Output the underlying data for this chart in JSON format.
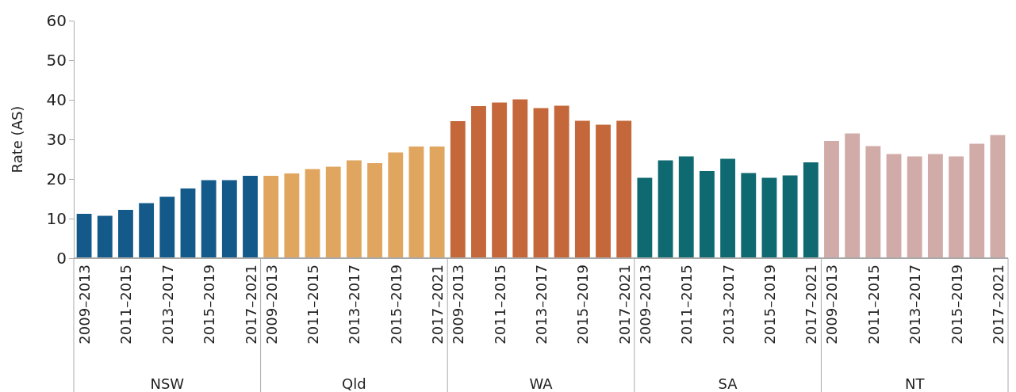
{
  "chart_data": {
    "type": "bar",
    "ylabel": "Rate (AS)",
    "ylim": [
      0,
      60
    ],
    "yticks": [
      0,
      10,
      20,
      30,
      40,
      50,
      60
    ],
    "grid": false,
    "annotations": [
      "NSW",
      "Qld",
      "WA",
      "SA",
      "NT"
    ],
    "categories": [
      "2009–2013",
      null,
      "2011–2015",
      null,
      "2013–2017",
      null,
      "2015–2019",
      null,
      "2017–2021",
      "2009–2013",
      null,
      "2011–2015",
      null,
      "2013–2017",
      null,
      "2015–2019",
      null,
      "2017–2021",
      "2009–2013",
      null,
      "2011–2015",
      null,
      "2013–2017",
      null,
      "2015–2019",
      null,
      "2017–2021",
      "2009–2013",
      null,
      "2011–2015",
      null,
      "2013–2017",
      null,
      "2015–2019",
      null,
      "2017–2021",
      "2009–2013",
      null,
      "2011–2015",
      null,
      "2013–2017",
      null,
      "2015–2019",
      null,
      "2017–2021"
    ],
    "series": [
      {
        "color": "#135a8a",
        "values": [
          11.2,
          10.7,
          12.2,
          13.9,
          15.5,
          17.6,
          19.7,
          19.7,
          20.8,
          null,
          null,
          null,
          null,
          null,
          null,
          null,
          null,
          null,
          null,
          null,
          null,
          null,
          null,
          null,
          null,
          null,
          null,
          null,
          null,
          null,
          null,
          null,
          null,
          null,
          null,
          null,
          null,
          null,
          null,
          null,
          null,
          null,
          null,
          null,
          null
        ]
      },
      {
        "color": "#e0a55e",
        "values": [
          null,
          null,
          null,
          null,
          null,
          null,
          null,
          null,
          null,
          20.8,
          21.4,
          22.5,
          23.1,
          24.7,
          24.0,
          26.7,
          28.2,
          28.2,
          null,
          null,
          null,
          null,
          null,
          null,
          null,
          null,
          null,
          null,
          null,
          null,
          null,
          null,
          null,
          null,
          null,
          null,
          null,
          null,
          null,
          null,
          null,
          null,
          null,
          null,
          null
        ]
      },
      {
        "color": "#c4673a",
        "values": [
          null,
          null,
          null,
          null,
          null,
          null,
          null,
          null,
          null,
          null,
          null,
          null,
          null,
          null,
          null,
          null,
          null,
          null,
          34.6,
          38.4,
          39.3,
          40.1,
          37.9,
          38.5,
          34.7,
          33.7,
          34.7,
          null,
          null,
          null,
          null,
          null,
          null,
          null,
          null,
          null,
          null,
          null,
          null,
          null,
          null,
          null,
          null,
          null,
          null
        ]
      },
      {
        "color": "#0e6970",
        "values": [
          null,
          null,
          null,
          null,
          null,
          null,
          null,
          null,
          null,
          null,
          null,
          null,
          null,
          null,
          null,
          null,
          null,
          null,
          null,
          null,
          null,
          null,
          null,
          null,
          null,
          null,
          null,
          20.3,
          24.7,
          25.7,
          22.0,
          25.1,
          21.5,
          20.3,
          20.9,
          24.2,
          null,
          null,
          null,
          null,
          null,
          null,
          null,
          null,
          null
        ]
      },
      {
        "color": "#d1aba7",
        "values": [
          null,
          null,
          null,
          null,
          null,
          null,
          null,
          null,
          null,
          null,
          null,
          null,
          null,
          null,
          null,
          null,
          null,
          null,
          null,
          null,
          null,
          null,
          null,
          null,
          null,
          null,
          null,
          null,
          null,
          null,
          null,
          null,
          null,
          null,
          null,
          null,
          29.6,
          31.5,
          28.3,
          26.3,
          25.7,
          26.3,
          25.7,
          28.9,
          31.1
        ]
      }
    ]
  }
}
